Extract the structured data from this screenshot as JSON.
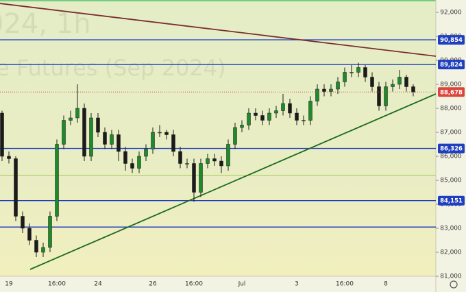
{
  "chart_data": {
    "type": "candlestick",
    "watermark": [
      "024, 1h",
      "e Futures (Sep 2024)"
    ],
    "categories": [
      null,
      "19",
      null,
      null,
      null,
      null,
      null,
      null,
      "16:00",
      null,
      null,
      null,
      null,
      null,
      "24",
      null,
      null,
      null,
      null,
      null,
      null,
      null,
      "26",
      null,
      null,
      null,
      null,
      null,
      "16:00",
      null,
      null,
      null,
      null,
      null,
      null,
      "Jul",
      null,
      null,
      null,
      null,
      null,
      null,
      null,
      "3",
      null,
      null,
      null,
      null,
      null,
      null,
      "16:00",
      null,
      null,
      null,
      null,
      null,
      "8",
      null,
      null,
      null,
      null
    ],
    "open": [
      87800,
      86000,
      85900,
      83500,
      83000,
      82500,
      82000,
      82200,
      83500,
      86500,
      87500,
      87600,
      88000,
      86000,
      87600,
      87000,
      86500,
      86900,
      86200,
      85700,
      85500,
      86000,
      86300,
      87000,
      87000,
      86900,
      86200,
      85700,
      85700,
      84500,
      85700,
      85900,
      85800,
      85600,
      86500,
      87200,
      87300,
      87800,
      87700,
      87500,
      87800,
      87900,
      88200,
      87800,
      87500,
      87500,
      88300,
      88800,
      88700,
      88800,
      89100,
      89500,
      89500,
      89700,
      89300,
      88900,
      88100,
      88900,
      89000,
      89300,
      88900
    ],
    "high": [
      87900,
      86200,
      86000,
      83700,
      83200,
      82700,
      82400,
      83700,
      86700,
      87700,
      87900,
      89000,
      88200,
      87800,
      87800,
      87200,
      87100,
      87100,
      86400,
      85900,
      86200,
      86500,
      87200,
      87300,
      87100,
      87100,
      86400,
      85900,
      85900,
      85900,
      86100,
      86100,
      86000,
      86700,
      87400,
      87500,
      88000,
      88000,
      87900,
      88000,
      88100,
      88600,
      88400,
      88000,
      87700,
      88500,
      89000,
      89000,
      89000,
      89300,
      89700,
      89800,
      89900,
      89800,
      89500,
      89100,
      89100,
      89200,
      89600,
      89400,
      89000
    ],
    "low": [
      85800,
      85700,
      83300,
      82800,
      82300,
      81800,
      81800,
      82000,
      83300,
      86300,
      87300,
      87400,
      85800,
      85800,
      86800,
      86300,
      86300,
      85800,
      85400,
      85300,
      85300,
      85800,
      86100,
      86800,
      86700,
      86000,
      85500,
      85500,
      84100,
      84300,
      85500,
      85600,
      85300,
      85400,
      86300,
      87000,
      87100,
      87500,
      87300,
      87300,
      87600,
      87700,
      87600,
      87300,
      87300,
      87300,
      88100,
      88500,
      88500,
      88600,
      88900,
      89300,
      89300,
      89100,
      88700,
      87900,
      87900,
      88700,
      88800,
      88700,
      88500
    ],
    "close": [
      86000,
      85900,
      83500,
      83000,
      82500,
      82000,
      82200,
      83500,
      86500,
      87500,
      87600,
      88000,
      86000,
      87600,
      87000,
      86500,
      86900,
      86200,
      85700,
      85500,
      86000,
      86300,
      87000,
      87000,
      86900,
      86200,
      85700,
      85700,
      84500,
      85700,
      85900,
      85800,
      85600,
      86500,
      87200,
      87300,
      87800,
      87700,
      87500,
      87800,
      87900,
      88200,
      87800,
      87500,
      87500,
      88300,
      88800,
      88700,
      88800,
      89100,
      89500,
      89500,
      89700,
      89300,
      88900,
      88100,
      88900,
      89000,
      89300,
      88900,
      88678
    ],
    "up_color": "#1f8a2a",
    "down_color": "#1b1b1b",
    "ylim": [
      81000,
      92000
    ],
    "yticks": [
      {
        "value": 81000,
        "label": "81,000"
      },
      {
        "value": 82000,
        "label": "82,000"
      },
      {
        "value": 83000,
        "label": "83,000"
      },
      {
        "value": 84000,
        "label": "84,000"
      },
      {
        "value": 85000,
        "label": "85,000"
      },
      {
        "value": 86000,
        "label": "86,000"
      },
      {
        "value": 87000,
        "label": "87,000"
      },
      {
        "value": 88000,
        "label": "88,000"
      },
      {
        "value": 89000,
        "label": "89,000"
      },
      {
        "value": 90000,
        "label": "90,000"
      },
      {
        "value": 91000,
        "label": "91,000"
      },
      {
        "value": 92000,
        "label": "92,000"
      }
    ],
    "levels": [
      {
        "value": 90854,
        "label": "90,854",
        "color": "#1f3fbf"
      },
      {
        "value": 89824,
        "label": "89,824",
        "color": "#1f3fbf"
      },
      {
        "value": 86326,
        "label": "86,326",
        "color": "#1f3fbf"
      },
      {
        "value": 84151,
        "label": "84,151",
        "color": "#1f3fbf"
      },
      {
        "value": 83050,
        "color": "#1f3fbf"
      },
      {
        "value": 85200,
        "color": "#b5d67a"
      }
    ],
    "last_price": {
      "value": 88678,
      "label": "88,678",
      "color": "#d9463b"
    },
    "trendlines": [
      {
        "color": "#7a2e2e",
        "x": [
          -0.3,
          63.3
        ],
        "y": [
          92370,
          90171
        ]
      },
      {
        "color": "#1e6b1e",
        "x": [
          4.1,
          63.3
        ],
        "y": [
          81286,
          88600
        ]
      }
    ]
  }
}
